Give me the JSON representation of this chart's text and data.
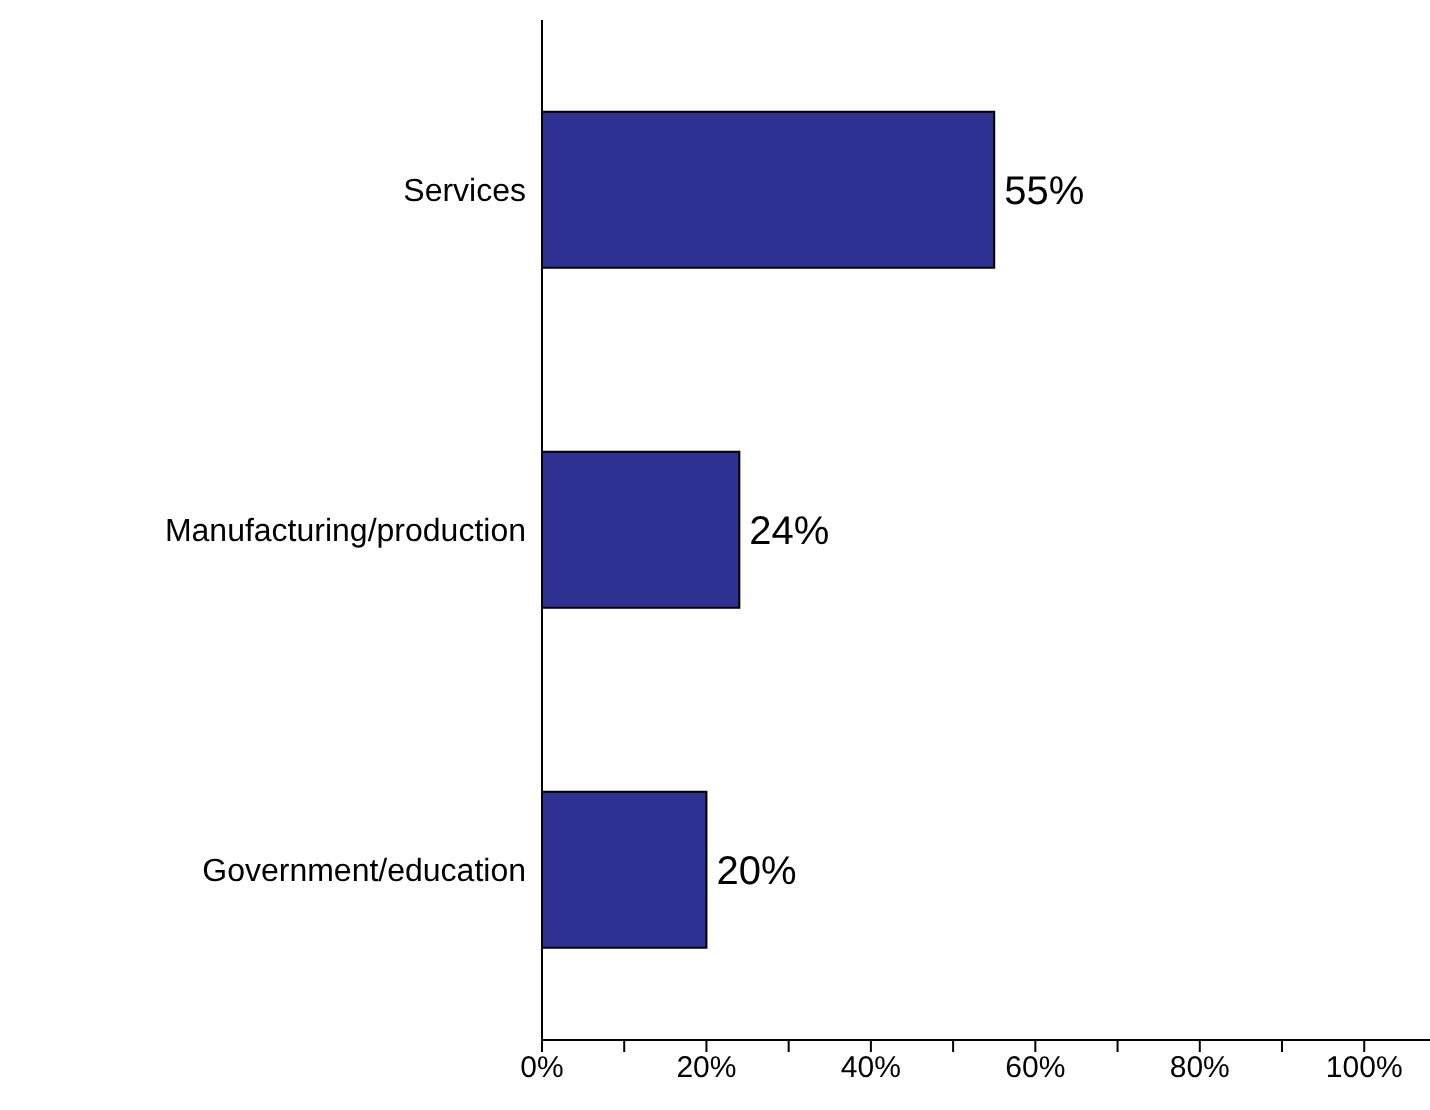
{
  "chart_data": {
    "type": "bar",
    "orientation": "horizontal",
    "categories": [
      "Services",
      "Manufacturing/production",
      "Government/education"
    ],
    "values": [
      55,
      24,
      20
    ],
    "color": "#2e3192",
    "value_labels": [
      "55%",
      "24%",
      "20%"
    ],
    "xlim": [
      0,
      108
    ],
    "xticks": [
      {
        "value": 0,
        "label": "0%"
      },
      {
        "value": 10,
        "label": null
      },
      {
        "value": 20,
        "label": "20%"
      },
      {
        "value": 30,
        "label": null
      },
      {
        "value": 40,
        "label": "40%"
      },
      {
        "value": 50,
        "label": null
      },
      {
        "value": 60,
        "label": "60%"
      },
      {
        "value": 70,
        "label": null
      },
      {
        "value": 80,
        "label": "80%"
      },
      {
        "value": 90,
        "label": null
      },
      {
        "value": 100,
        "label": "100%"
      }
    ],
    "grid": false,
    "legend": false
  }
}
